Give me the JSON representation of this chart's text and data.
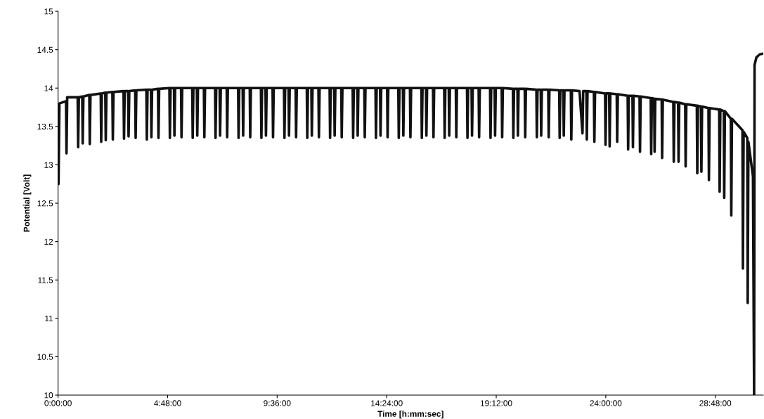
{
  "chart_data": {
    "type": "line",
    "xlabel": "Time [h:mm:sec]",
    "ylabel": "Potential [Volt]",
    "xlim": [
      0,
      30.9
    ],
    "ylim": [
      10,
      15
    ],
    "xticks": [
      {
        "value": 0,
        "label": "0:00:00"
      },
      {
        "value": 4.8,
        "label": "4:48:00"
      },
      {
        "value": 9.6,
        "label": "9:36:00"
      },
      {
        "value": 14.4,
        "label": "14:24:00"
      },
      {
        "value": 19.2,
        "label": "19:12:00"
      },
      {
        "value": 24,
        "label": "24:00:00"
      },
      {
        "value": 28.8,
        "label": "28:48:00"
      }
    ],
    "yticks": [
      10,
      10.5,
      11,
      11.5,
      12,
      12.5,
      13,
      13.5,
      14,
      14.5,
      15
    ],
    "grid": false,
    "marker": "none",
    "line_style": "solid",
    "series": [
      {
        "color": "#111111",
        "x": [
          0,
          0.02,
          0.06,
          0.35,
          0.37,
          0.4,
          0.86,
          0.88,
          0.91,
          1.06,
          1.08,
          1.11,
          1.37,
          1.39,
          1.42,
          1.87,
          1.89,
          1.92,
          2.07,
          2.09,
          2.12,
          2.38,
          2.4,
          2.43,
          2.87,
          2.89,
          2.92,
          3.07,
          3.09,
          3.12,
          3.38,
          3.4,
          3.43,
          3.87,
          3.89,
          3.92,
          4.07,
          4.09,
          4.12,
          4.38,
          4.4,
          4.43,
          4.88,
          4.9,
          4.93,
          5.08,
          5.1,
          5.13,
          5.39,
          5.41,
          5.44,
          5.88,
          5.9,
          5.93,
          6.08,
          6.1,
          6.13,
          6.39,
          6.41,
          6.44,
          6.88,
          6.9,
          6.93,
          7.08,
          7.1,
          7.13,
          7.39,
          7.41,
          7.44,
          7.89,
          7.91,
          7.94,
          8.09,
          8.11,
          8.14,
          8.4,
          8.42,
          8.45,
          8.89,
          8.91,
          8.94,
          9.09,
          9.11,
          9.14,
          9.4,
          9.42,
          9.45,
          9.9,
          9.92,
          9.95,
          10.1,
          10.12,
          10.15,
          10.41,
          10.43,
          10.46,
          10.9,
          10.92,
          10.95,
          11.1,
          11.12,
          11.15,
          11.41,
          11.43,
          11.46,
          11.9,
          11.92,
          11.95,
          12.1,
          12.12,
          12.15,
          12.41,
          12.43,
          12.46,
          12.91,
          12.93,
          12.96,
          13.11,
          13.13,
          13.16,
          13.42,
          13.44,
          13.47,
          13.91,
          13.93,
          13.96,
          14.11,
          14.13,
          14.16,
          14.42,
          14.44,
          14.47,
          14.91,
          14.93,
          14.96,
          15.11,
          15.13,
          15.16,
          15.42,
          15.44,
          15.47,
          15.92,
          15.94,
          15.97,
          16.12,
          16.14,
          16.17,
          16.43,
          16.45,
          16.48,
          16.92,
          16.94,
          16.97,
          17.12,
          17.14,
          17.17,
          17.43,
          17.45,
          17.48,
          17.92,
          17.94,
          17.97,
          18.12,
          18.14,
          18.17,
          18.43,
          18.45,
          18.48,
          18.93,
          18.95,
          18.98,
          19.13,
          19.15,
          19.18,
          19.44,
          19.46,
          19.49,
          19.93,
          19.95,
          19.98,
          20.13,
          20.15,
          20.18,
          20.45,
          20.47,
          20.5,
          20.96,
          20.98,
          21.01,
          21.15,
          21.17,
          21.2,
          21.48,
          21.5,
          21.53,
          21.96,
          21.98,
          22.01,
          22.14,
          22.16,
          22.19,
          22.47,
          22.49,
          22.52,
          22.85,
          22.98,
          23.01,
          23.15,
          23.17,
          23.2,
          23.48,
          23.5,
          23.53,
          23.97,
          23.99,
          24.02,
          24.15,
          24.17,
          24.2,
          24.48,
          24.5,
          24.53,
          24.96,
          24.98,
          25.01,
          25.17,
          25.19,
          25.22,
          25.48,
          25.5,
          25.53,
          25.97,
          25.99,
          26.02,
          26.12,
          26.14,
          26.17,
          26.45,
          26.47,
          26.5,
          26.96,
          26.98,
          27.01,
          27.17,
          27.19,
          27.22,
          27.48,
          27.5,
          27.53,
          27.99,
          28.01,
          28.04,
          28.17,
          28.19,
          28.22,
          28.5,
          28.52,
          28.55,
          28.97,
          28.99,
          29.02,
          29.17,
          29.19,
          29.22,
          29.48,
          29.5,
          29.53,
          29.99,
          30.01,
          30.04,
          30.2,
          30.22,
          30.25,
          30.45,
          30.5,
          30.52,
          30.6,
          30.75,
          30.9
        ],
        "values": [
          13.3,
          12.75,
          13.8,
          13.83,
          13.15,
          13.88,
          13.88,
          13.23,
          13.88,
          13.89,
          13.28,
          13.89,
          13.91,
          13.27,
          13.91,
          13.93,
          13.3,
          13.93,
          13.94,
          13.32,
          13.94,
          13.95,
          13.33,
          13.95,
          13.96,
          13.34,
          13.96,
          13.96,
          13.37,
          13.96,
          13.97,
          13.35,
          13.97,
          13.98,
          13.33,
          13.98,
          13.98,
          13.36,
          13.98,
          13.99,
          13.35,
          13.99,
          14,
          13.35,
          14,
          14,
          13.38,
          14,
          14,
          13.36,
          14,
          14,
          13.35,
          14,
          14,
          13.38,
          14,
          14,
          13.36,
          14,
          14,
          13.35,
          14,
          14,
          13.38,
          14,
          14,
          13.36,
          14,
          14,
          13.35,
          14,
          14,
          13.38,
          14,
          14,
          13.36,
          14,
          14,
          13.35,
          14,
          14,
          13.38,
          14,
          14,
          13.36,
          14,
          14,
          13.35,
          14,
          14,
          13.38,
          14,
          14,
          13.36,
          14,
          14,
          13.35,
          14,
          14,
          13.38,
          14,
          14,
          13.36,
          14,
          14,
          13.35,
          14,
          14,
          13.38,
          14,
          14,
          13.36,
          14,
          14,
          13.35,
          14,
          14,
          13.38,
          14,
          14,
          13.36,
          14,
          14,
          13.35,
          14,
          14,
          13.38,
          14,
          14,
          13.36,
          14,
          14,
          13.35,
          14,
          14,
          13.38,
          14,
          14,
          13.36,
          14,
          14,
          13.35,
          14,
          14,
          13.38,
          14,
          14,
          13.36,
          14,
          14,
          13.35,
          14,
          14,
          13.38,
          14,
          14,
          13.36,
          14,
          14,
          13.35,
          14,
          14,
          13.38,
          14,
          14,
          13.36,
          14,
          14,
          13.35,
          14,
          14,
          13.38,
          14,
          14,
          13.36,
          14,
          13.99,
          13.35,
          13.99,
          13.99,
          13.38,
          13.99,
          13.99,
          13.36,
          13.99,
          13.98,
          13.36,
          13.98,
          13.98,
          13.38,
          13.98,
          13.98,
          13.36,
          13.98,
          13.97,
          13.35,
          13.97,
          13.97,
          13.38,
          13.97,
          13.97,
          13.33,
          13.97,
          13.96,
          13.41,
          13.96,
          13.96,
          13.33,
          13.96,
          13.95,
          13.3,
          13.95,
          13.93,
          13.26,
          13.93,
          13.93,
          13.24,
          13.93,
          13.92,
          13.3,
          13.92,
          13.9,
          13.2,
          13.9,
          13.9,
          13.23,
          13.9,
          13.89,
          13.17,
          13.89,
          13.87,
          13.14,
          13.87,
          13.86,
          13.17,
          13.86,
          13.85,
          13.09,
          13.85,
          13.82,
          13.04,
          13.82,
          13.81,
          13.04,
          13.81,
          13.79,
          12.98,
          13.79,
          13.77,
          12.89,
          13.77,
          13.76,
          12.91,
          13.76,
          13.74,
          12.8,
          13.74,
          13.72,
          12.65,
          13.72,
          13.7,
          12.57,
          13.7,
          13.6,
          12.34,
          13.6,
          13.45,
          11.65,
          13.43,
          13.35,
          11.2,
          13.3,
          12.85,
          10,
          14.3,
          14.4,
          14.44,
          14.45
        ]
      }
    ]
  }
}
